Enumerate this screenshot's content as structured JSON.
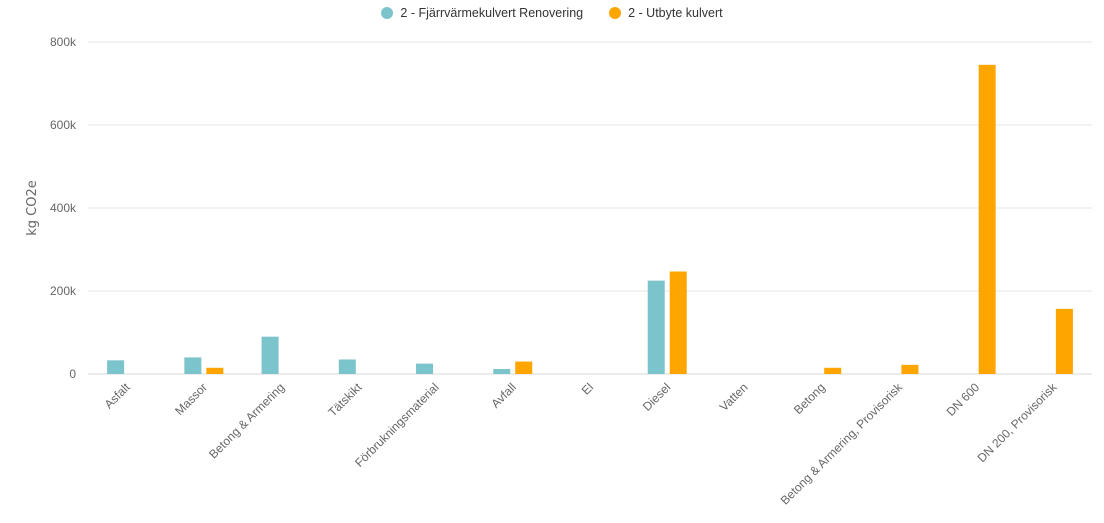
{
  "chart_data": {
    "type": "bar",
    "ylabel": "kg CO2e",
    "ylim": [
      0,
      800000
    ],
    "yticks": [
      0,
      200000,
      400000,
      600000,
      800000
    ],
    "ytick_labels": [
      "0",
      "200k",
      "400k",
      "600k",
      "800k"
    ],
    "grid": true,
    "legend_position": "top-center",
    "categories": [
      "Asfalt",
      "Massor",
      "Betong & Armering",
      "Tätskikt",
      "Förbrukningsmaterial",
      "Avfall",
      "El",
      "Diesel",
      "Vatten",
      "Betong",
      "Betong & Armering, Provisorisk",
      "DN 600",
      "DN 200, Provisorisk"
    ],
    "series": [
      {
        "name": "2 - Fjärrvärmekulvert Renovering",
        "color": "#7cc4cc",
        "values": [
          33000,
          40000,
          90000,
          35000,
          25000,
          12000,
          0,
          225000,
          0,
          0,
          0,
          0,
          0
        ]
      },
      {
        "name": "2 - Utbyte kulvert",
        "color": "#ffa500",
        "values": [
          0,
          15000,
          0,
          0,
          0,
          30000,
          0,
          247000,
          0,
          15000,
          22000,
          745000,
          157000
        ]
      }
    ]
  }
}
